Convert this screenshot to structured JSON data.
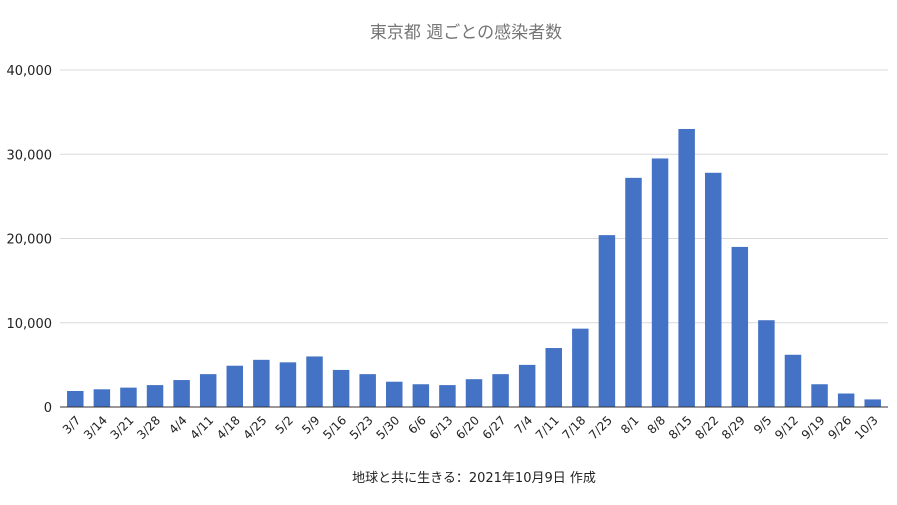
{
  "chart_data": {
    "type": "bar",
    "title": "東京都 週ごとの感染者数",
    "xlabel": "地球と共に生きる：2021年10月9日 作成",
    "ylabel": "",
    "ylim": [
      0,
      40000
    ],
    "yticks": [
      0,
      10000,
      20000,
      30000,
      40000
    ],
    "ytick_labels": [
      "0",
      "10,000",
      "20,000",
      "30,000",
      "40,000"
    ],
    "grid": true,
    "legend": "none",
    "color": "#4472c4",
    "categories": [
      "3/7",
      "3/14",
      "3/21",
      "3/28",
      "4/4",
      "4/11",
      "4/18",
      "4/25",
      "5/2",
      "5/9",
      "5/16",
      "5/23",
      "5/30",
      "6/6",
      "6/13",
      "6/20",
      "6/27",
      "7/4",
      "7/11",
      "7/18",
      "7/25",
      "8/1",
      "8/8",
      "8/15",
      "8/22",
      "8/29",
      "9/5",
      "9/12",
      "9/19",
      "9/26",
      "10/3"
    ],
    "values": [
      1900,
      2100,
      2300,
      2600,
      3200,
      3900,
      4900,
      5600,
      5300,
      6000,
      4400,
      3900,
      3000,
      2700,
      2600,
      3300,
      3900,
      5000,
      7000,
      9300,
      20400,
      27200,
      29500,
      33000,
      27800,
      19000,
      10300,
      6200,
      2700,
      1600,
      900
    ]
  }
}
